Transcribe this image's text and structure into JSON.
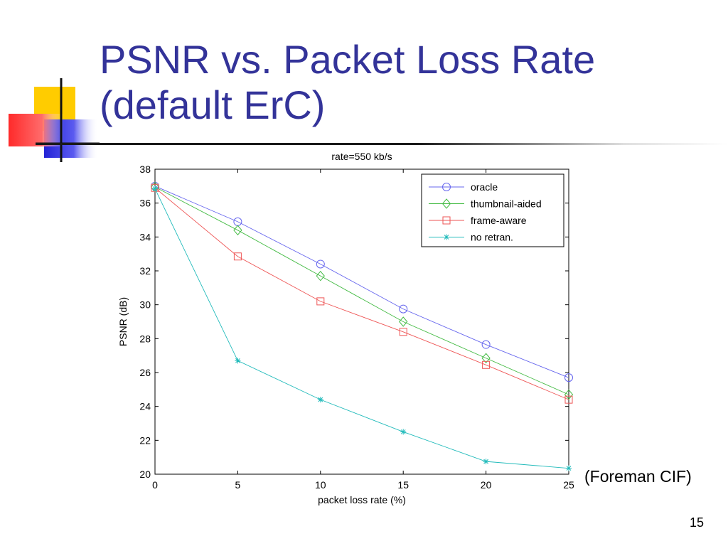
{
  "slide": {
    "title_line1": "PSNR vs. Packet Loss Rate",
    "title_line2": "(default ErC)",
    "note": "(Foreman CIF)",
    "page_number": "15",
    "title_color": "#333399"
  },
  "chart_data": {
    "type": "line",
    "title": "rate=550 kb/s",
    "xlabel": "packet loss rate (%)",
    "ylabel": "PSNR (dB)",
    "xlim": [
      0,
      25
    ],
    "ylim": [
      20,
      38
    ],
    "xticks": [
      0,
      5,
      10,
      15,
      20,
      25
    ],
    "yticks": [
      20,
      22,
      24,
      26,
      28,
      30,
      32,
      34,
      36,
      38
    ],
    "grid": false,
    "legend_position": "top-right",
    "x": [
      0,
      5,
      10,
      15,
      20,
      25
    ],
    "series": [
      {
        "name": "oracle",
        "color": "#6666ee",
        "marker": "circle",
        "values": [
          37.0,
          34.9,
          32.4,
          29.75,
          27.65,
          25.7
        ]
      },
      {
        "name": "thumbnail-aided",
        "color": "#44bb44",
        "marker": "diamond",
        "values": [
          36.95,
          34.4,
          31.7,
          29.0,
          26.85,
          24.7
        ]
      },
      {
        "name": "frame-aware",
        "color": "#ee5555",
        "marker": "square",
        "values": [
          36.9,
          32.85,
          30.2,
          28.4,
          26.45,
          24.4
        ]
      },
      {
        "name": "no retran.",
        "color": "#22bbbb",
        "marker": "star",
        "values": [
          36.85,
          26.7,
          24.4,
          22.5,
          20.75,
          20.35
        ]
      }
    ]
  }
}
